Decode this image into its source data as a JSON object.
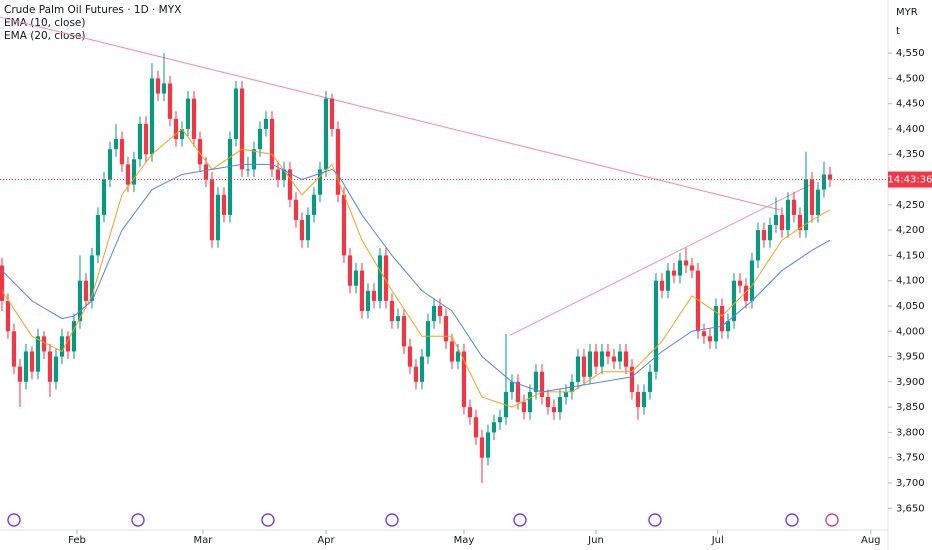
{
  "chart_data": {
    "type": "candlestick",
    "title": "Crude Palm Oil Futures · 1D · MYX",
    "currency": "MYR",
    "unit_label": "t",
    "countdown": "14:43:36",
    "up_color": "#089981",
    "down_color": "#f23645",
    "ylim": [
      3607,
      4655
    ],
    "yticks": [
      {
        "value": 3650,
        "label": "3,650"
      },
      {
        "value": 3700,
        "label": "3,700"
      },
      {
        "value": 3750,
        "label": "3,750"
      },
      {
        "value": 3800,
        "label": "3,800"
      },
      {
        "value": 3850,
        "label": "3,850"
      },
      {
        "value": 3900,
        "label": "3,900"
      },
      {
        "value": 3950,
        "label": "3,950"
      },
      {
        "value": 4000,
        "label": "4,000"
      },
      {
        "value": 4050,
        "label": "4,050"
      },
      {
        "value": 4100,
        "label": "4,100"
      },
      {
        "value": 4150,
        "label": "4,150"
      },
      {
        "value": 4200,
        "label": "4,200"
      },
      {
        "value": 4250,
        "label": "4,250"
      },
      {
        "value": 4300,
        "label": "4,300"
      },
      {
        "value": 4350,
        "label": "4,350"
      },
      {
        "value": 4400,
        "label": "4,400"
      },
      {
        "value": 4450,
        "label": "4,450"
      },
      {
        "value": 4500,
        "label": "4,500"
      },
      {
        "value": 4550,
        "label": "4,550"
      }
    ],
    "xlim": [
      -0.33,
      147.67
    ],
    "xticks": [
      {
        "value": 12.5,
        "label": "Feb"
      },
      {
        "value": 33.5,
        "label": "Mar"
      },
      {
        "value": 54,
        "label": "Apr"
      },
      {
        "value": 77,
        "label": "May"
      },
      {
        "value": 99,
        "label": "Jun"
      },
      {
        "value": 119.3,
        "label": "Jul"
      },
      {
        "value": 144.8,
        "label": "Aug"
      }
    ],
    "candles": [
      [
        4130,
        4145,
        4040,
        4060
      ],
      [
        4060,
        4075,
        3985,
        4000
      ],
      [
        4000,
        4015,
        3915,
        3930
      ],
      [
        3930,
        3945,
        3850,
        3900
      ],
      [
        3900,
        3975,
        3885,
        3960
      ],
      [
        3960,
        3970,
        3905,
        3920
      ],
      [
        3920,
        4005,
        3905,
        3990
      ],
      [
        3990,
        4000,
        3945,
        3960
      ],
      [
        3960,
        3975,
        3870,
        3900
      ],
      [
        3900,
        3965,
        3885,
        3950
      ],
      [
        3950,
        4005,
        3935,
        3990
      ],
      [
        3990,
        4000,
        3945,
        3960
      ],
      [
        3960,
        4035,
        3945,
        4020
      ],
      [
        4020,
        4150,
        4005,
        4100
      ],
      [
        4100,
        4115,
        4045,
        4060
      ],
      [
        4060,
        4165,
        4045,
        4150
      ],
      [
        4150,
        4245,
        4135,
        4230
      ],
      [
        4230,
        4315,
        4215,
        4300
      ],
      [
        4300,
        4375,
        4285,
        4360
      ],
      [
        4360,
        4410,
        4345,
        4380
      ],
      [
        4380,
        4395,
        4315,
        4330
      ],
      [
        4330,
        4345,
        4275,
        4290
      ],
      [
        4290,
        4355,
        4275,
        4340
      ],
      [
        4340,
        4425,
        4325,
        4410
      ],
      [
        4410,
        4425,
        4335,
        4350
      ],
      [
        4350,
        4530,
        4335,
        4500
      ],
      [
        4500,
        4515,
        4455,
        4470
      ],
      [
        4470,
        4550,
        4455,
        4490
      ],
      [
        4490,
        4505,
        4405,
        4420
      ],
      [
        4420,
        4435,
        4365,
        4380
      ],
      [
        4380,
        4415,
        4365,
        4400
      ],
      [
        4400,
        4475,
        4385,
        4460
      ],
      [
        4460,
        4475,
        4365,
        4380
      ],
      [
        4380,
        4395,
        4315,
        4330
      ],
      [
        4330,
        4345,
        4285,
        4300
      ],
      [
        4300,
        4315,
        4165,
        4180
      ],
      [
        4180,
        4285,
        4165,
        4270
      ],
      [
        4270,
        4285,
        4215,
        4230
      ],
      [
        4230,
        4395,
        4215,
        4380
      ],
      [
        4380,
        4495,
        4365,
        4480
      ],
      [
        4480,
        4495,
        4305,
        4320
      ],
      [
        4320,
        4345,
        4305,
        4320
      ],
      [
        4320,
        4375,
        4305,
        4360
      ],
      [
        4360,
        4415,
        4345,
        4400
      ],
      [
        4400,
        4435,
        4385,
        4420
      ],
      [
        4420,
        4435,
        4305,
        4320
      ],
      [
        4320,
        4335,
        4285,
        4300
      ],
      [
        4300,
        4335,
        4285,
        4320
      ],
      [
        4320,
        4335,
        4245,
        4260
      ],
      [
        4260,
        4275,
        4205,
        4220
      ],
      [
        4220,
        4235,
        4165,
        4180
      ],
      [
        4180,
        4245,
        4165,
        4230
      ],
      [
        4230,
        4285,
        4215,
        4270
      ],
      [
        4270,
        4335,
        4255,
        4320
      ],
      [
        4320,
        4475,
        4305,
        4460
      ],
      [
        4460,
        4470,
        4385,
        4400
      ],
      [
        4400,
        4415,
        4255,
        4270
      ],
      [
        4270,
        4285,
        4135,
        4150
      ],
      [
        4150,
        4165,
        4075,
        4090
      ],
      [
        4090,
        4135,
        4075,
        4120
      ],
      [
        4120,
        4135,
        4025,
        4040
      ],
      [
        4040,
        4095,
        4025,
        4080
      ],
      [
        4080,
        4095,
        4045,
        4060
      ],
      [
        4060,
        4165,
        4045,
        4150
      ],
      [
        4150,
        4165,
        4045,
        4060
      ],
      [
        4060,
        4075,
        4005,
        4020
      ],
      [
        4020,
        4045,
        4005,
        4030
      ],
      [
        4030,
        4045,
        3955,
        3970
      ],
      [
        3970,
        3985,
        3915,
        3930
      ],
      [
        3930,
        3945,
        3885,
        3900
      ],
      [
        3900,
        3965,
        3885,
        3950
      ],
      [
        3950,
        4035,
        3935,
        4020
      ],
      [
        4020,
        4065,
        4005,
        4050
      ],
      [
        4050,
        4065,
        4015,
        4030
      ],
      [
        4030,
        4045,
        3965,
        3980
      ],
      [
        3980,
        3995,
        3925,
        3940
      ],
      [
        3940,
        3975,
        3925,
        3960
      ],
      [
        3960,
        3975,
        3835,
        3850
      ],
      [
        3850,
        3865,
        3815,
        3830
      ],
      [
        3830,
        3845,
        3775,
        3790
      ],
      [
        3790,
        3805,
        3700,
        3750
      ],
      [
        3750,
        3815,
        3735,
        3800
      ],
      [
        3800,
        3835,
        3785,
        3820
      ],
      [
        3820,
        3845,
        3805,
        3830
      ],
      [
        3830,
        3995,
        3815,
        3880
      ],
      [
        3880,
        3915,
        3865,
        3900
      ],
      [
        3900,
        3915,
        3845,
        3860
      ],
      [
        3860,
        3875,
        3825,
        3840
      ],
      [
        3840,
        3895,
        3825,
        3880
      ],
      [
        3880,
        3935,
        3865,
        3920
      ],
      [
        3920,
        3935,
        3855,
        3870
      ],
      [
        3870,
        3885,
        3835,
        3850
      ],
      [
        3850,
        3865,
        3825,
        3840
      ],
      [
        3840,
        3885,
        3825,
        3870
      ],
      [
        3870,
        3895,
        3855,
        3880
      ],
      [
        3880,
        3915,
        3865,
        3900
      ],
      [
        3900,
        3965,
        3885,
        3950
      ],
      [
        3950,
        3965,
        3895,
        3910
      ],
      [
        3910,
        3975,
        3895,
        3960
      ],
      [
        3960,
        3975,
        3915,
        3930
      ],
      [
        3930,
        3975,
        3915,
        3960
      ],
      [
        3960,
        3975,
        3935,
        3950
      ],
      [
        3950,
        3965,
        3925,
        3940
      ],
      [
        3940,
        3975,
        3925,
        3960
      ],
      [
        3960,
        3975,
        3915,
        3930
      ],
      [
        3930,
        3945,
        3865,
        3880
      ],
      [
        3880,
        3895,
        3825,
        3850
      ],
      [
        3850,
        3895,
        3835,
        3880
      ],
      [
        3880,
        3935,
        3865,
        3920
      ],
      [
        3920,
        4115,
        3905,
        4100
      ],
      [
        4100,
        4115,
        4065,
        4080
      ],
      [
        4080,
        4135,
        4065,
        4120
      ],
      [
        4120,
        4135,
        4095,
        4110
      ],
      [
        4110,
        4155,
        4095,
        4140
      ],
      [
        4140,
        4165,
        4115,
        4130
      ],
      [
        4130,
        4145,
        4105,
        4120
      ],
      [
        4120,
        4135,
        3985,
        4000
      ],
      [
        4000,
        4015,
        3975,
        3990
      ],
      [
        3990,
        4005,
        3965,
        3980
      ],
      [
        3980,
        4065,
        3965,
        4050
      ],
      [
        4050,
        4065,
        3985,
        4000
      ],
      [
        4000,
        4035,
        3985,
        4020
      ],
      [
        4020,
        4115,
        4005,
        4100
      ],
      [
        4100,
        4115,
        4075,
        4090
      ],
      [
        4090,
        4105,
        4045,
        4060
      ],
      [
        4060,
        4155,
        4045,
        4140
      ],
      [
        4140,
        4215,
        4125,
        4200
      ],
      [
        4200,
        4215,
        4165,
        4180
      ],
      [
        4180,
        4225,
        4165,
        4210
      ],
      [
        4210,
        4265,
        4195,
        4230
      ],
      [
        4230,
        4245,
        4185,
        4200
      ],
      [
        4200,
        4275,
        4185,
        4260
      ],
      [
        4260,
        4275,
        4215,
        4230
      ],
      [
        4230,
        4245,
        4185,
        4200
      ],
      [
        4200,
        4355,
        4185,
        4300
      ],
      [
        4300,
        4315,
        4215,
        4230
      ],
      [
        4230,
        4295,
        4215,
        4280
      ],
      [
        4280,
        4335,
        4265,
        4310
      ],
      [
        4310,
        4325,
        4285,
        4300
      ]
    ],
    "series": [
      {
        "name": "EMA (10, close)",
        "color": "#f7a21b",
        "x": [
          0,
          5,
          10,
          15,
          20,
          25,
          30,
          35,
          40,
          45,
          50,
          55,
          60,
          65,
          70,
          75,
          80,
          85,
          90,
          95,
          100,
          105,
          110,
          115,
          120,
          125,
          130,
          135,
          138
        ],
        "values": [
          4080,
          3990,
          3960,
          4070,
          4270,
          4350,
          4400,
          4320,
          4360,
          4350,
          4270,
          4330,
          4180,
          4080,
          3990,
          3990,
          3870,
          3850,
          3880,
          3880,
          3920,
          3920,
          3980,
          4070,
          4030,
          4090,
          4180,
          4220,
          4240
        ]
      },
      {
        "name": "EMA (20, close)",
        "color": "#4f86f0",
        "x": [
          0,
          5,
          10,
          12,
          15,
          20,
          25,
          30,
          35,
          40,
          45,
          50,
          55,
          56,
          60,
          65,
          70,
          75,
          80,
          85,
          90,
          95,
          100,
          105,
          110,
          115,
          120,
          125,
          130,
          135,
          138
        ],
        "values": [
          4120,
          4060,
          4025,
          4030,
          4060,
          4200,
          4280,
          4310,
          4320,
          4330,
          4330,
          4300,
          4320,
          4310,
          4230,
          4150,
          4080,
          4040,
          3950,
          3900,
          3880,
          3890,
          3900,
          3910,
          3960,
          4000,
          4010,
          4060,
          4120,
          4160,
          4180
        ]
      }
    ],
    "trend_lines": [
      {
        "x": [
          -0.33,
          129.67
        ],
        "y": [
          4621,
          4240
        ]
      },
      {
        "x": [
          84.67,
          134.67
        ],
        "y": [
          3992,
          4289
        ]
      }
    ]
  }
}
